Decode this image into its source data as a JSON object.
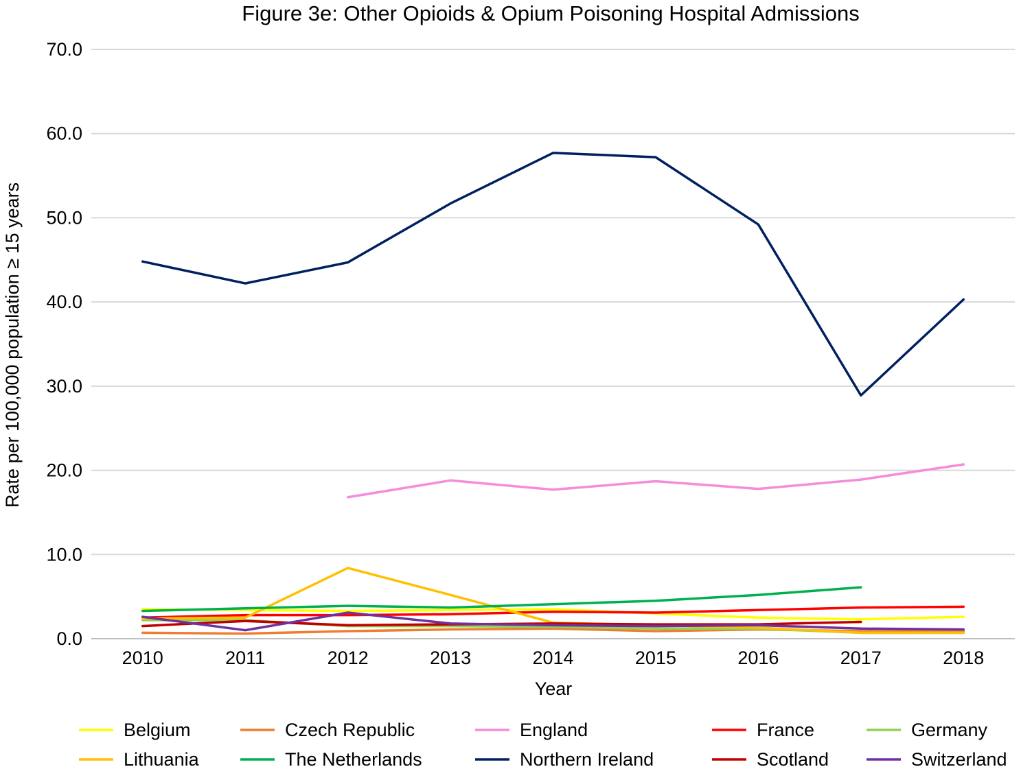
{
  "chart_data": {
    "type": "line",
    "title": "Figure 3e: Other Opioids & Opium Poisoning Hospital Admissions",
    "xlabel": "Year",
    "ylabel": "Rate per 100,000 population ≥ 15 years",
    "categories": [
      "2010",
      "2011",
      "2012",
      "2013",
      "2014",
      "2015",
      "2016",
      "2017",
      "2018"
    ],
    "ylim": [
      0,
      70
    ],
    "yticks": [
      "0.0",
      "10.0",
      "20.0",
      "30.0",
      "40.0",
      "50.0",
      "60.0",
      "70.0"
    ],
    "grid": "horizontal",
    "legend_position": "bottom",
    "series": [
      {
        "name": "Belgium",
        "color": "#FFFF00",
        "values": [
          3.5,
          3.4,
          3.3,
          3.4,
          3.5,
          3.0,
          2.5,
          2.3,
          2.6
        ]
      },
      {
        "name": "Czech Republic",
        "color": "#ED7D31",
        "values": [
          0.7,
          0.6,
          0.9,
          1.1,
          1.2,
          0.9,
          1.1,
          0.9,
          0.9
        ]
      },
      {
        "name": "England",
        "color": "#F48CD9",
        "values": [
          null,
          null,
          16.8,
          18.8,
          17.7,
          18.7,
          17.8,
          18.9,
          20.7
        ]
      },
      {
        "name": "France",
        "color": "#FF0000",
        "values": [
          2.5,
          2.8,
          2.8,
          2.9,
          3.2,
          3.1,
          3.4,
          3.7,
          3.8
        ]
      },
      {
        "name": "Germany",
        "color": "#92D050",
        "values": [
          2.2,
          2.2,
          1.5,
          1.5,
          1.4,
          1.2,
          1.2,
          0.7,
          0.7
        ]
      },
      {
        "name": "Lithuania",
        "color": "#FFC000",
        "values": [
          2.4,
          2.5,
          8.4,
          5.2,
          1.9,
          1.6,
          1.3,
          0.7,
          0.7
        ]
      },
      {
        "name": "The Netherlands",
        "color": "#00B050",
        "values": [
          3.3,
          3.6,
          3.9,
          3.7,
          4.1,
          4.5,
          5.2,
          6.1,
          null
        ]
      },
      {
        "name": "Northern Ireland",
        "color": "#002060",
        "values": [
          44.8,
          42.2,
          44.7,
          51.7,
          57.7,
          57.2,
          49.2,
          28.9,
          40.3
        ]
      },
      {
        "name": "Scotland",
        "color": "#C00000",
        "values": [
          1.5,
          2.1,
          1.6,
          1.7,
          1.8,
          1.7,
          1.7,
          2.0,
          null
        ]
      },
      {
        "name": "Switzerland",
        "color": "#7030A0",
        "values": [
          2.6,
          1.0,
          3.1,
          1.8,
          1.6,
          1.5,
          1.6,
          1.2,
          1.1
        ]
      }
    ]
  }
}
